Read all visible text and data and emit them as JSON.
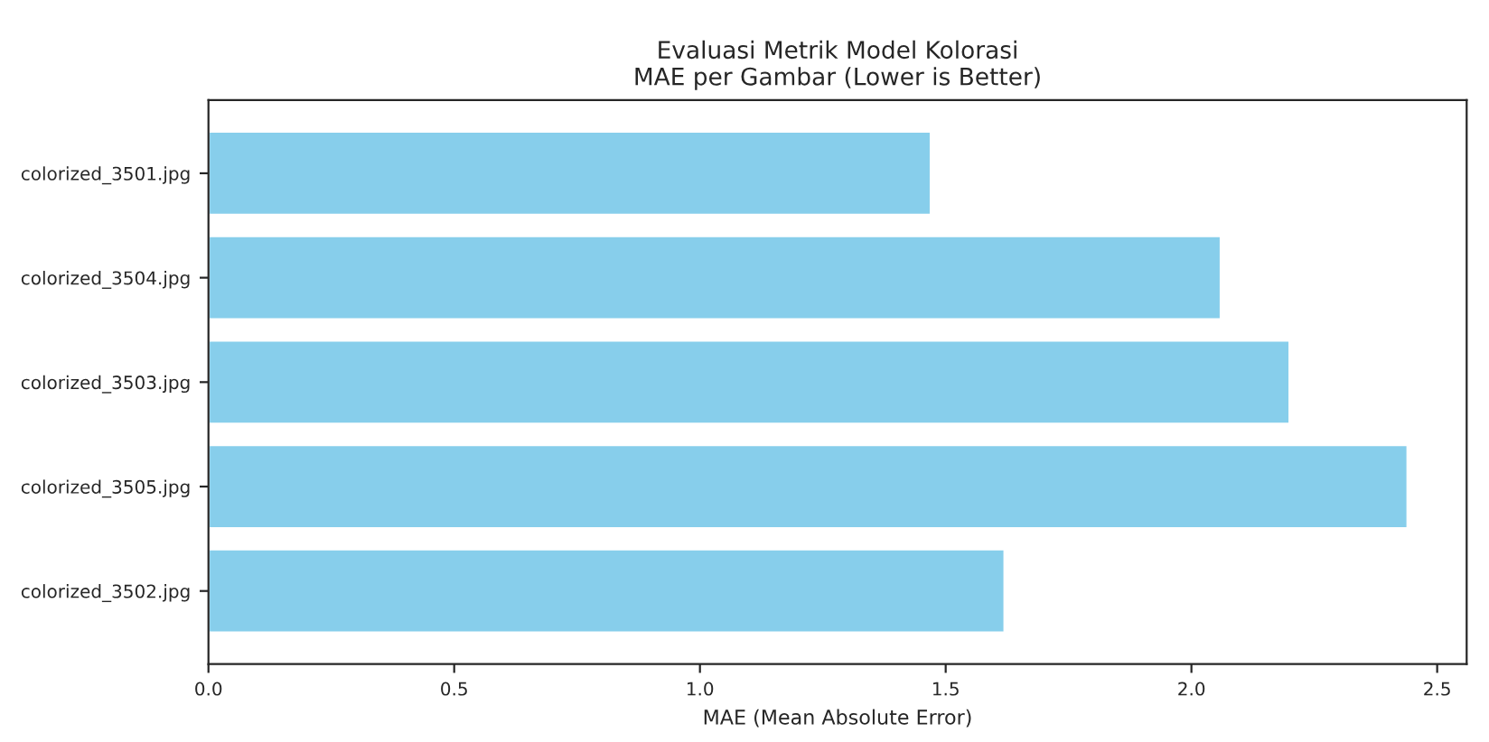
{
  "chart_data": {
    "type": "bar",
    "orientation": "horizontal",
    "title": "Evaluasi Metrik Model Kolorasi\nMAE per Gambar (Lower is Better)",
    "xlabel": "MAE (Mean Absolute Error)",
    "categories": [
      "colorized_3501.jpg",
      "colorized_3504.jpg",
      "colorized_3503.jpg",
      "colorized_3505.jpg",
      "colorized_3502.jpg"
    ],
    "values": [
      1.47,
      2.06,
      2.2,
      2.44,
      1.62
    ],
    "color": "#87ceeb",
    "xlim": [
      0,
      2.56
    ],
    "xticks": [
      {
        "value": 0,
        "label": "0.0"
      },
      0.5,
      {
        "value": 1,
        "label": "1.0"
      },
      1.5,
      {
        "value": 2,
        "label": "2.0"
      },
      2.5
    ],
    "grid": false
  }
}
